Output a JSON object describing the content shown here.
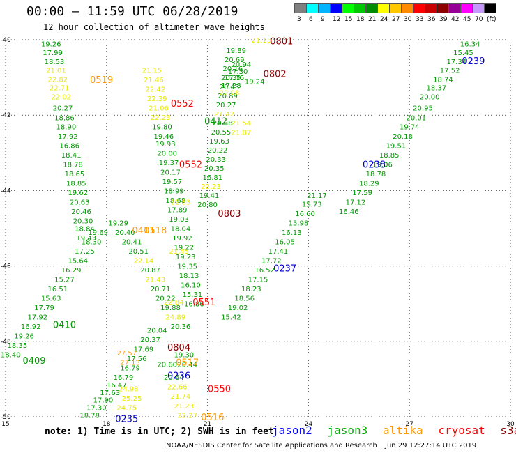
{
  "header": {
    "title": "00:00 – 11:59 UTC 06/28/2019",
    "subtitle": "12 hour collection of altimeter wave heights"
  },
  "scale": {
    "colors": [
      "#808080",
      "#00ffff",
      "#00b4ff",
      "#0000ff",
      "#00ff00",
      "#00c800",
      "#008c00",
      "#ffff00",
      "#ffc800",
      "#ff8c00",
      "#ff0000",
      "#c80000",
      "#8c0000",
      "#960096",
      "#ff00ff",
      "#c896ff",
      "#000000"
    ],
    "labels": [
      "3",
      "6",
      "9",
      "12",
      "15",
      "18",
      "21",
      "24",
      "27",
      "30",
      "33",
      "36",
      "39",
      "42",
      "45",
      "70",
      "(ft)"
    ]
  },
  "footer": {
    "note": "note: 1) Time is in UTC; 2) SWH is in feet",
    "satellites": [
      {
        "name": "jason2",
        "color": "#0000ff"
      },
      {
        "name": "jason3",
        "color": "#00aa00"
      },
      {
        "name": "altika",
        "color": "#ff9900"
      },
      {
        "name": "cryosat",
        "color": "#ff0000"
      },
      {
        "name": "s3a",
        "color": "#8b0000"
      }
    ],
    "credit": "NOAA/NESDIS Center for Satellite Applications and Research",
    "timestamp": "Jun 29 12:27:14 UTC 2019"
  },
  "chart_data": {
    "type": "scatter",
    "x_ticks": [
      "15",
      "18",
      "21",
      "24",
      "27",
      "30"
    ],
    "y_ticks": [
      "-40",
      "-42",
      "-44",
      "-46",
      "-48",
      "-50"
    ],
    "xlim": [
      15,
      30
    ],
    "ylim": [
      -50,
      -40
    ],
    "grid": true,
    "colors": {
      "g": "#009900",
      "y": "#e8e800",
      "o": "#ff9900",
      "r": "#ff0000",
      "m": "#8b0000",
      "b": "#0000cc"
    },
    "points": [
      [
        "19.26",
        16.35,
        -40.1,
        "g"
      ],
      [
        "17.99",
        16.4,
        -40.33,
        "g"
      ],
      [
        "18.53",
        16.45,
        -40.57,
        "g"
      ],
      [
        "21.01",
        16.5,
        -40.8,
        "y"
      ],
      [
        "22.82",
        16.55,
        -41.04,
        "y"
      ],
      [
        "22.71",
        16.6,
        -41.27,
        "y"
      ],
      [
        "22.02",
        16.65,
        -41.51,
        "y"
      ],
      [
        "20.27",
        16.7,
        -41.8,
        "g"
      ],
      [
        "18.86",
        16.75,
        -42.06,
        "g"
      ],
      [
        "18.90",
        16.8,
        -42.3,
        "g"
      ],
      [
        "17.92",
        16.85,
        -42.55,
        "g"
      ],
      [
        "16.86",
        16.9,
        -42.8,
        "g"
      ],
      [
        "18.41",
        16.95,
        -43.05,
        "g"
      ],
      [
        "18.78",
        17.0,
        -43.3,
        "g"
      ],
      [
        "18.65",
        17.05,
        -43.55,
        "g"
      ],
      [
        "18.85",
        17.1,
        -43.8,
        "g"
      ],
      [
        "19.62",
        17.15,
        -44.05,
        "g"
      ],
      [
        "20.63",
        17.2,
        -44.3,
        "g"
      ],
      [
        "20.46",
        17.25,
        -44.55,
        "g"
      ],
      [
        "20.30",
        17.3,
        -44.8,
        "g"
      ],
      [
        "18.84",
        17.35,
        -45.0,
        "g"
      ],
      [
        "19.43",
        17.4,
        -45.25,
        "g"
      ],
      [
        "21.15",
        19.35,
        -40.8,
        "y"
      ],
      [
        "21.46",
        19.4,
        -41.05,
        "y"
      ],
      [
        "22.42",
        19.45,
        -41.3,
        "y"
      ],
      [
        "22.39",
        19.5,
        -41.55,
        "y"
      ],
      [
        "21.06",
        19.55,
        -41.8,
        "y"
      ],
      [
        "22.23",
        19.6,
        -42.05,
        "y"
      ],
      [
        "19.80",
        19.65,
        -42.3,
        "g"
      ],
      [
        "19.46",
        19.7,
        -42.55,
        "g"
      ],
      [
        "19.93",
        19.75,
        -42.75,
        "g"
      ],
      [
        "20.00",
        19.8,
        -43.0,
        "g"
      ],
      [
        "19.37",
        19.85,
        -43.25,
        "g"
      ],
      [
        "20.17",
        19.9,
        -43.5,
        "g"
      ],
      [
        "19.57",
        19.95,
        -43.75,
        "g"
      ],
      [
        "18.99",
        20.0,
        -44.0,
        "g"
      ],
      [
        "18.68",
        20.05,
        -44.25,
        "g"
      ],
      [
        "17.89",
        20.1,
        -44.5,
        "g"
      ],
      [
        "19.03",
        20.15,
        -44.75,
        "g"
      ],
      [
        "18.04",
        20.2,
        -45.0,
        "g"
      ],
      [
        "19.92",
        20.25,
        -45.25,
        "g"
      ],
      [
        "19.22",
        20.3,
        -45.5,
        "g"
      ],
      [
        "19.23",
        20.35,
        -45.75,
        "g"
      ],
      [
        "19.35",
        20.4,
        -46.0,
        "g"
      ],
      [
        "18.13",
        20.45,
        -46.25,
        "g"
      ],
      [
        "16.10",
        20.5,
        -46.5,
        "g"
      ],
      [
        "15.31",
        20.55,
        -46.75,
        "g"
      ],
      [
        "16.86",
        20.6,
        -47.0,
        "g"
      ],
      [
        "19.89",
        21.85,
        -40.28,
        "g"
      ],
      [
        "20.69",
        21.8,
        -40.52,
        "g"
      ],
      [
        "20.16",
        21.75,
        -40.76,
        "g"
      ],
      [
        "20.39",
        21.7,
        -41.0,
        "g"
      ],
      [
        "20.43",
        21.65,
        -41.24,
        "g"
      ],
      [
        "20.89",
        21.6,
        -41.48,
        "g"
      ],
      [
        "20.27",
        21.55,
        -41.72,
        "g"
      ],
      [
        "21.42",
        21.5,
        -41.96,
        "y"
      ],
      [
        "20.38",
        21.45,
        -42.2,
        "g"
      ],
      [
        "20.55",
        21.4,
        -42.44,
        "g"
      ],
      [
        "19.63",
        21.35,
        -42.68,
        "g"
      ],
      [
        "20.22",
        21.3,
        -42.92,
        "g"
      ],
      [
        "20.33",
        21.25,
        -43.16,
        "g"
      ],
      [
        "20.35",
        21.2,
        -43.4,
        "g"
      ],
      [
        "16.81",
        21.15,
        -43.64,
        "g"
      ],
      [
        "22.23",
        21.1,
        -43.88,
        "y"
      ],
      [
        "19.41",
        21.05,
        -44.12,
        "g"
      ],
      [
        "20.80",
        21.0,
        -44.36,
        "g"
      ],
      [
        "21.17",
        24.25,
        -44.12,
        "g"
      ],
      [
        "15.73",
        24.1,
        -44.35,
        "g"
      ],
      [
        "16.60",
        23.9,
        -44.6,
        "g"
      ],
      [
        "15.98",
        23.7,
        -44.85,
        "g"
      ],
      [
        "16.13",
        23.5,
        -45.1,
        "g"
      ],
      [
        "16.05",
        23.3,
        -45.35,
        "g"
      ],
      [
        "17.41",
        23.1,
        -45.6,
        "g"
      ],
      [
        "17.72",
        22.9,
        -45.85,
        "g"
      ],
      [
        "16.52",
        22.7,
        -46.1,
        "g"
      ],
      [
        "17.15",
        22.5,
        -46.35,
        "g"
      ],
      [
        "18.23",
        22.3,
        -46.6,
        "g"
      ],
      [
        "18.56",
        22.1,
        -46.85,
        "g"
      ],
      [
        "19.02",
        21.9,
        -47.1,
        "g"
      ],
      [
        "15.42",
        21.7,
        -47.35,
        "g"
      ],
      [
        "16.34",
        28.8,
        -40.1,
        "g"
      ],
      [
        "15.45",
        28.6,
        -40.33,
        "g"
      ],
      [
        "17.34",
        28.4,
        -40.57,
        "g"
      ],
      [
        "17.52",
        28.2,
        -40.8,
        "g"
      ],
      [
        "18.74",
        28.0,
        -41.04,
        "g"
      ],
      [
        "18.37",
        27.8,
        -41.27,
        "g"
      ],
      [
        "20.00",
        27.6,
        -41.51,
        "g"
      ],
      [
        "20.95",
        27.4,
        -41.8,
        "g"
      ],
      [
        "20.01",
        27.2,
        -42.06,
        "g"
      ],
      [
        "19.74",
        27.0,
        -42.3,
        "g"
      ],
      [
        "20.18",
        26.8,
        -42.55,
        "g"
      ],
      [
        "19.51",
        26.6,
        -42.8,
        "g"
      ],
      [
        "18.85",
        26.4,
        -43.05,
        "g"
      ],
      [
        "19.06",
        26.2,
        -43.3,
        "g"
      ],
      [
        "18.78",
        26.0,
        -43.55,
        "g"
      ],
      [
        "18.29",
        25.8,
        -43.8,
        "g"
      ],
      [
        "17.59",
        25.6,
        -44.05,
        "g"
      ],
      [
        "17.12",
        25.4,
        -44.3,
        "g"
      ],
      [
        "16.46",
        25.2,
        -44.55,
        "g"
      ],
      [
        "18.35",
        15.35,
        -48.1,
        "g"
      ],
      [
        "19.26",
        15.55,
        -47.85,
        "g"
      ],
      [
        "16.92",
        15.75,
        -47.6,
        "g"
      ],
      [
        "17.92",
        15.95,
        -47.35,
        "g"
      ],
      [
        "17.79",
        16.15,
        -47.1,
        "g"
      ],
      [
        "15.63",
        16.35,
        -46.85,
        "g"
      ],
      [
        "16.51",
        16.55,
        -46.6,
        "g"
      ],
      [
        "15.27",
        16.75,
        -46.35,
        "g"
      ],
      [
        "16.29",
        16.95,
        -46.1,
        "g"
      ],
      [
        "15.64",
        17.15,
        -45.85,
        "g"
      ],
      [
        "17.25",
        17.35,
        -45.6,
        "g"
      ],
      [
        "18.30",
        17.55,
        -45.35,
        "g"
      ],
      [
        "19.69",
        17.75,
        -45.1,
        "g"
      ],
      [
        "18.40",
        15.15,
        -48.35,
        "g"
      ],
      [
        "19.29",
        18.35,
        -44.85,
        "g"
      ],
      [
        "20.40",
        18.55,
        -45.1,
        "g"
      ],
      [
        "20.41",
        18.75,
        -45.35,
        "g"
      ],
      [
        "20.51",
        18.95,
        -45.6,
        "g"
      ],
      [
        "22.14",
        19.1,
        -45.85,
        "y"
      ],
      [
        "20.87",
        19.3,
        -46.1,
        "g"
      ],
      [
        "21.43",
        19.45,
        -46.35,
        "y"
      ],
      [
        "20.71",
        19.6,
        -46.6,
        "g"
      ],
      [
        "20.22",
        19.75,
        -46.85,
        "g"
      ],
      [
        "19.88",
        19.9,
        -47.1,
        "g"
      ],
      [
        "24.89",
        20.05,
        -47.35,
        "y"
      ],
      [
        "20.36",
        20.2,
        -47.6,
        "g"
      ],
      [
        "18.78",
        17.5,
        -49.95,
        "g"
      ],
      [
        "17.30",
        17.7,
        -49.75,
        "g"
      ],
      [
        "17.90",
        17.9,
        -49.55,
        "g"
      ],
      [
        "17.63",
        18.1,
        -49.35,
        "g"
      ],
      [
        "16.47",
        18.3,
        -49.15,
        "g"
      ],
      [
        "16.79",
        18.5,
        -48.95,
        "g"
      ],
      [
        "16.79",
        18.7,
        -48.7,
        "g"
      ],
      [
        "17.56",
        18.9,
        -48.45,
        "g"
      ],
      [
        "17.69",
        19.1,
        -48.2,
        "g"
      ],
      [
        "20.37",
        19.3,
        -47.95,
        "g"
      ],
      [
        "20.04",
        19.5,
        -47.7,
        "g"
      ],
      [
        "24.75",
        18.6,
        -49.75,
        "y"
      ],
      [
        "25.25",
        18.75,
        -49.5,
        "y"
      ],
      [
        "24.98",
        18.65,
        -49.25,
        "y"
      ],
      [
        "27.57",
        18.6,
        -48.3,
        "o"
      ],
      [
        "27.13",
        18.7,
        -48.55,
        "o"
      ],
      [
        "19.30",
        20.3,
        -48.35,
        "g"
      ],
      [
        "20.44",
        20.4,
        -48.6,
        "g"
      ],
      [
        "20.64",
        20.0,
        -48.95,
        "g"
      ],
      [
        "22.66",
        20.1,
        -49.2,
        "y"
      ],
      [
        "21.74",
        20.2,
        -49.45,
        "y"
      ],
      [
        "21.23",
        20.3,
        -49.7,
        "y"
      ],
      [
        "22.27",
        20.4,
        -49.95,
        "y"
      ],
      [
        "20.60",
        19.8,
        -48.6,
        "g"
      ],
      [
        "21.13",
        22.6,
        -40.0,
        "y"
      ],
      [
        "20.94",
        22.0,
        -40.65,
        "g"
      ],
      [
        "17.30",
        21.9,
        -40.83,
        "g"
      ],
      [
        "17.75",
        21.8,
        -41.0,
        "g"
      ],
      [
        "19.24",
        22.4,
        -41.1,
        "g"
      ],
      [
        "17.28",
        21.7,
        -41.2,
        "g"
      ],
      [
        "22.08",
        21.65,
        -41.4,
        "y"
      ],
      [
        "21.54",
        22.0,
        -42.2,
        "y"
      ],
      [
        "21.87",
        22.0,
        -42.45,
        "y"
      ],
      [
        "22.83",
        20.2,
        -44.3,
        "y"
      ],
      [
        "21.45",
        20.15,
        -45.6,
        "y"
      ],
      [
        "22.84",
        20.0,
        -46.95,
        "y"
      ]
    ],
    "labels": [
      [
        "0519",
        17.85,
        -41.05,
        "o"
      ],
      [
        "0552",
        20.25,
        -41.68,
        "r"
      ],
      [
        "0801",
        23.2,
        -40.03,
        "m"
      ],
      [
        "0802",
        23.0,
        -40.9,
        "m"
      ],
      [
        "0239",
        28.9,
        -40.55,
        "b"
      ],
      [
        "0412",
        21.25,
        -42.15,
        "g"
      ],
      [
        "0552",
        20.5,
        -43.3,
        "r"
      ],
      [
        "0238",
        25.95,
        -43.3,
        "b"
      ],
      [
        "0803",
        21.65,
        -44.6,
        "m"
      ],
      [
        "0411",
        19.1,
        -45.05,
        "o"
      ],
      [
        "0237",
        23.3,
        -46.05,
        "b"
      ],
      [
        "0551",
        20.9,
        -46.95,
        "r"
      ],
      [
        "0410",
        16.75,
        -47.55,
        "g"
      ],
      [
        "0804",
        20.15,
        -48.15,
        "m"
      ],
      [
        "0409",
        15.85,
        -48.5,
        "g"
      ],
      [
        "0517",
        20.4,
        -48.55,
        "o"
      ],
      [
        "0236",
        20.15,
        -48.9,
        "b"
      ],
      [
        "0550",
        21.35,
        -49.25,
        "r"
      ],
      [
        "0235",
        18.6,
        -50.05,
        "b"
      ],
      [
        "0516",
        21.15,
        -50.0,
        "o"
      ],
      [
        "0518",
        19.45,
        -45.05,
        "o"
      ]
    ]
  }
}
